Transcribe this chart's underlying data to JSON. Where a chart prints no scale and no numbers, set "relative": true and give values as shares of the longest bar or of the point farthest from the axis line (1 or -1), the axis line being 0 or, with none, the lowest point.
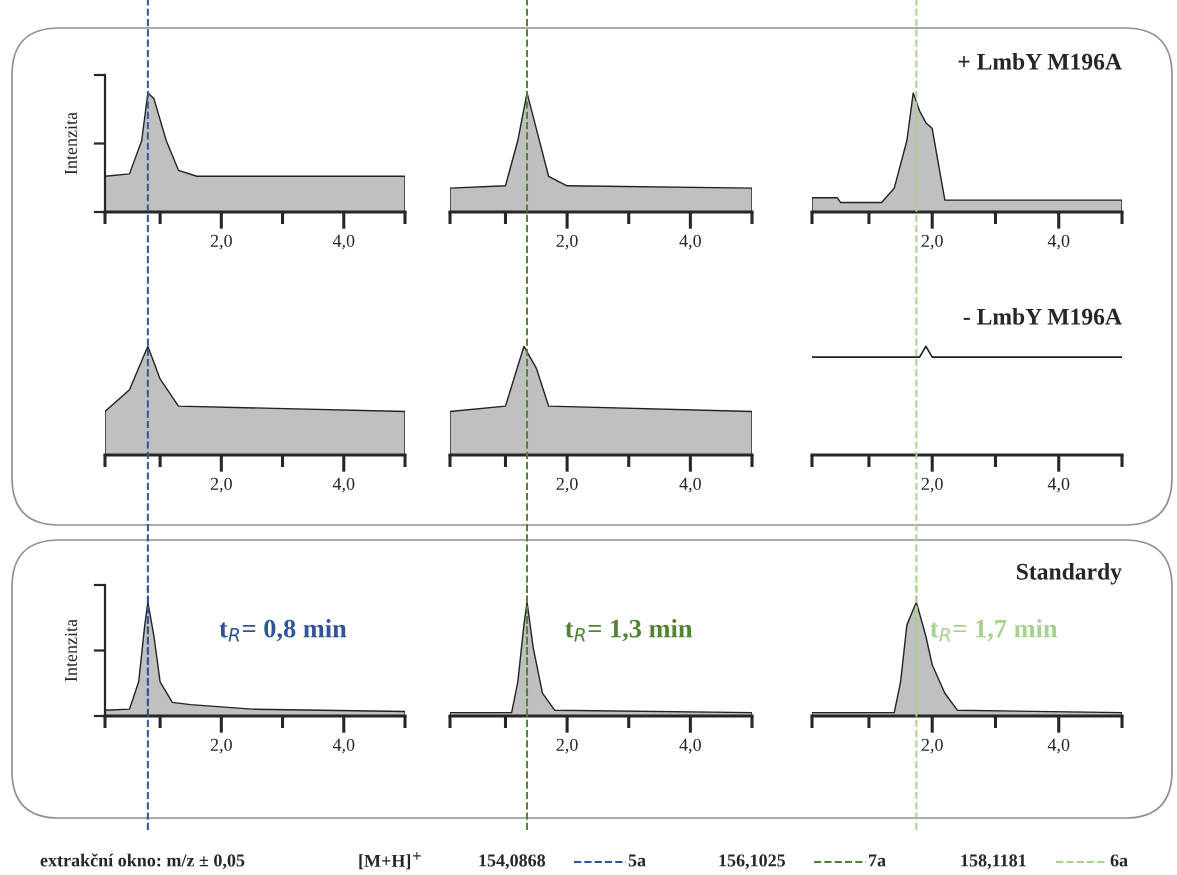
{
  "chart_data": [
    {
      "type": "area",
      "ylabel": "Intenzita",
      "relative": true,
      "xlim": [
        0.1,
        5
      ],
      "xticks": [
        {
          "value": 0.1,
          "label": null
        },
        {
          "value": 1,
          "label": null
        },
        {
          "value": 2,
          "label": "2,0"
        },
        {
          "value": 3,
          "label": null
        },
        {
          "value": 4,
          "label": "4,0"
        },
        {
          "value": 5,
          "label": null
        }
      ],
      "series": [
        {
          "color": "#c0c0c0",
          "x": [
            0.1,
            0.5,
            0.7,
            0.8,
            0.9,
            1.1,
            1.3,
            1.6,
            3,
            5
          ],
          "values": [
            0.3,
            0.32,
            0.6,
            1.0,
            0.95,
            0.6,
            0.35,
            0.3,
            0.3,
            0.3
          ]
        }
      ]
    },
    {
      "type": "area",
      "relative": true,
      "xlim": [
        0.1,
        5
      ],
      "xticks": [
        {
          "value": 0.1,
          "label": null
        },
        {
          "value": 1,
          "label": null
        },
        {
          "value": 2,
          "label": "2,0"
        },
        {
          "value": 3,
          "label": null
        },
        {
          "value": 4,
          "label": "4,0"
        },
        {
          "value": 5,
          "label": null
        }
      ],
      "series": [
        {
          "color": "#c0c0c0",
          "x": [
            0.1,
            1.0,
            1.2,
            1.35,
            1.5,
            1.7,
            2.0,
            5
          ],
          "values": [
            0.2,
            0.22,
            0.6,
            1.0,
            0.7,
            0.3,
            0.22,
            0.2
          ]
        }
      ]
    },
    {
      "type": "area",
      "title": "+ LmbY M196A",
      "relative": true,
      "xlim": [
        0.1,
        5
      ],
      "xticks": [
        {
          "value": 0.1,
          "label": null
        },
        {
          "value": 1,
          "label": null
        },
        {
          "value": 2,
          "label": "2,0"
        },
        {
          "value": 3,
          "label": null
        },
        {
          "value": 4,
          "label": "4,0"
        },
        {
          "value": 5,
          "label": null
        }
      ],
      "series": [
        {
          "color": "#c0c0c0",
          "x": [
            0.1,
            0.5,
            0.55,
            1.2,
            1.4,
            1.6,
            1.7,
            1.8,
            1.9,
            2.0,
            2.1,
            2.2,
            5
          ],
          "values": [
            0.12,
            0.12,
            0.08,
            0.08,
            0.2,
            0.6,
            1.0,
            0.85,
            0.75,
            0.7,
            0.4,
            0.1,
            0.1
          ]
        }
      ]
    },
    {
      "type": "area",
      "relative": true,
      "xlim": [
        0.1,
        5
      ],
      "xticks": [
        {
          "value": 0.1,
          "label": null
        },
        {
          "value": 1,
          "label": null
        },
        {
          "value": 2,
          "label": "2,0"
        },
        {
          "value": 3,
          "label": null
        },
        {
          "value": 4,
          "label": "4,0"
        },
        {
          "value": 5,
          "label": null
        }
      ],
      "series": [
        {
          "color": "#c0c0c0",
          "x": [
            0.1,
            0.5,
            0.8,
            1.0,
            1.3,
            5
          ],
          "values": [
            0.4,
            0.6,
            1.0,
            0.7,
            0.45,
            0.4
          ]
        }
      ]
    },
    {
      "type": "area",
      "relative": true,
      "xlim": [
        0.1,
        5
      ],
      "xticks": [
        {
          "value": 0.1,
          "label": null
        },
        {
          "value": 1,
          "label": null
        },
        {
          "value": 2,
          "label": "2,0"
        },
        {
          "value": 3,
          "label": null
        },
        {
          "value": 4,
          "label": "4,0"
        },
        {
          "value": 5,
          "label": null
        }
      ],
      "series": [
        {
          "color": "#c0c0c0",
          "x": [
            0.1,
            1.0,
            1.3,
            1.5,
            1.7,
            5
          ],
          "values": [
            0.4,
            0.45,
            1.0,
            0.8,
            0.45,
            0.4
          ]
        }
      ]
    },
    {
      "type": "line",
      "title": "- LmbY M196A",
      "relative": true,
      "xlim": [
        0.1,
        5
      ],
      "xticks": [
        {
          "value": 0.1,
          "label": null
        },
        {
          "value": 1,
          "label": null
        },
        {
          "value": 2,
          "label": "2,0"
        },
        {
          "value": 3,
          "label": null
        },
        {
          "value": 4,
          "label": "4,0"
        },
        {
          "value": 5,
          "label": null
        }
      ],
      "series": [
        {
          "color": "#222222",
          "x": [
            0.1,
            1.8,
            1.9,
            2.0,
            5
          ],
          "values": [
            0.9,
            0.9,
            1.0,
            0.9,
            0.9
          ]
        }
      ]
    },
    {
      "type": "area",
      "ylabel": "Intenzita",
      "relative": true,
      "annotations": [
        "t$_{R}$= 0,8 min"
      ],
      "xlim": [
        0.1,
        5
      ],
      "xticks": [
        {
          "value": 0.1,
          "label": null
        },
        {
          "value": 1,
          "label": null
        },
        {
          "value": 2,
          "label": "2,0"
        },
        {
          "value": 3,
          "label": null
        },
        {
          "value": 4,
          "label": "4,0"
        },
        {
          "value": 5,
          "label": null
        }
      ],
      "ref_lines": [
        {
          "axis": "x",
          "value": 0.8,
          "label": "5a",
          "color": "#2f5597",
          "line_style": "dashed"
        }
      ],
      "series": [
        {
          "color": "#c0c0c0",
          "x": [
            0.1,
            0.5,
            0.65,
            0.75,
            0.8,
            0.9,
            1.0,
            1.2,
            1.5,
            2.5,
            5
          ],
          "values": [
            0.05,
            0.06,
            0.3,
            0.8,
            1.0,
            0.7,
            0.3,
            0.12,
            0.1,
            0.06,
            0.04
          ]
        }
      ]
    },
    {
      "type": "area",
      "relative": true,
      "annotations": [
        "t$_{R}$= 1,3 min"
      ],
      "xlim": [
        0.1,
        5
      ],
      "xticks": [
        {
          "value": 0.1,
          "label": null
        },
        {
          "value": 1,
          "label": null
        },
        {
          "value": 2,
          "label": "2,0"
        },
        {
          "value": 3,
          "label": null
        },
        {
          "value": 4,
          "label": "4,0"
        },
        {
          "value": 5,
          "label": null
        }
      ],
      "ref_lines": [
        {
          "axis": "x",
          "value": 1.35,
          "label": "7a",
          "color": "#548235",
          "line_style": "dashed"
        }
      ],
      "series": [
        {
          "color": "#c0c0c0",
          "x": [
            0.1,
            1.1,
            1.2,
            1.3,
            1.35,
            1.45,
            1.6,
            1.8,
            5
          ],
          "values": [
            0.03,
            0.03,
            0.3,
            0.8,
            1.0,
            0.6,
            0.2,
            0.05,
            0.03
          ]
        }
      ]
    },
    {
      "type": "area",
      "title": "Standardy",
      "relative": true,
      "annotations": [
        "t$_{R}$= 1,7 min"
      ],
      "xlim": [
        0.1,
        5
      ],
      "xticks": [
        {
          "value": 0.1,
          "label": null
        },
        {
          "value": 1,
          "label": null
        },
        {
          "value": 2,
          "label": "2,0"
        },
        {
          "value": 3,
          "label": null
        },
        {
          "value": 4,
          "label": "4,0"
        },
        {
          "value": 5,
          "label": null
        }
      ],
      "ref_lines": [
        {
          "axis": "x",
          "value": 1.75,
          "label": "6a",
          "color": "#a9d18e",
          "line_style": "dashed"
        }
      ],
      "series": [
        {
          "color": "#c0c0c0",
          "x": [
            0.1,
            1.4,
            1.5,
            1.6,
            1.75,
            1.9,
            2.0,
            2.2,
            2.4,
            5
          ],
          "values": [
            0.03,
            0.03,
            0.3,
            0.8,
            1.0,
            0.7,
            0.45,
            0.2,
            0.05,
            0.03
          ]
        }
      ]
    },
    {
      "type": "other",
      "annotations": [
        "extrakční okno: m/z ± 0,05",
        "[M+H]$^{+}$",
        "154,0868",
        "156,1025",
        "158,1181"
      ]
    }
  ]
}
